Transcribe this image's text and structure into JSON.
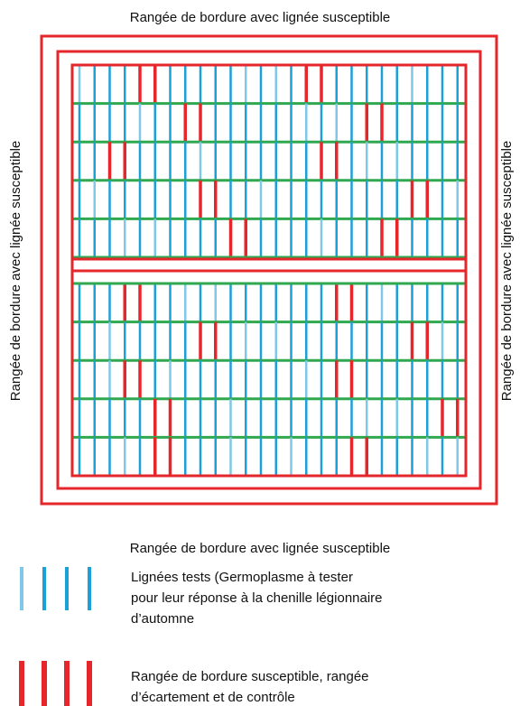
{
  "field": {
    "top_label": "Rangée de bordure avec lignée susceptible",
    "bottom_label": "Rangée de bordure avec lignée susceptible",
    "left_label": "Rangée de bordure avec lignée susceptible",
    "right_label": "Rangée de bordure avec lignée susceptible"
  },
  "legend": [
    {
      "lines": [
        "Lignées tests (Germoplasme à tester",
        "pour leur réponse à la chenille légionnaire",
        "d’automne"
      ]
    },
    {
      "lines": [
        "Rangée de bordure susceptible, rangée",
        "d’écartement et de contrôle"
      ]
    }
  ]
}
